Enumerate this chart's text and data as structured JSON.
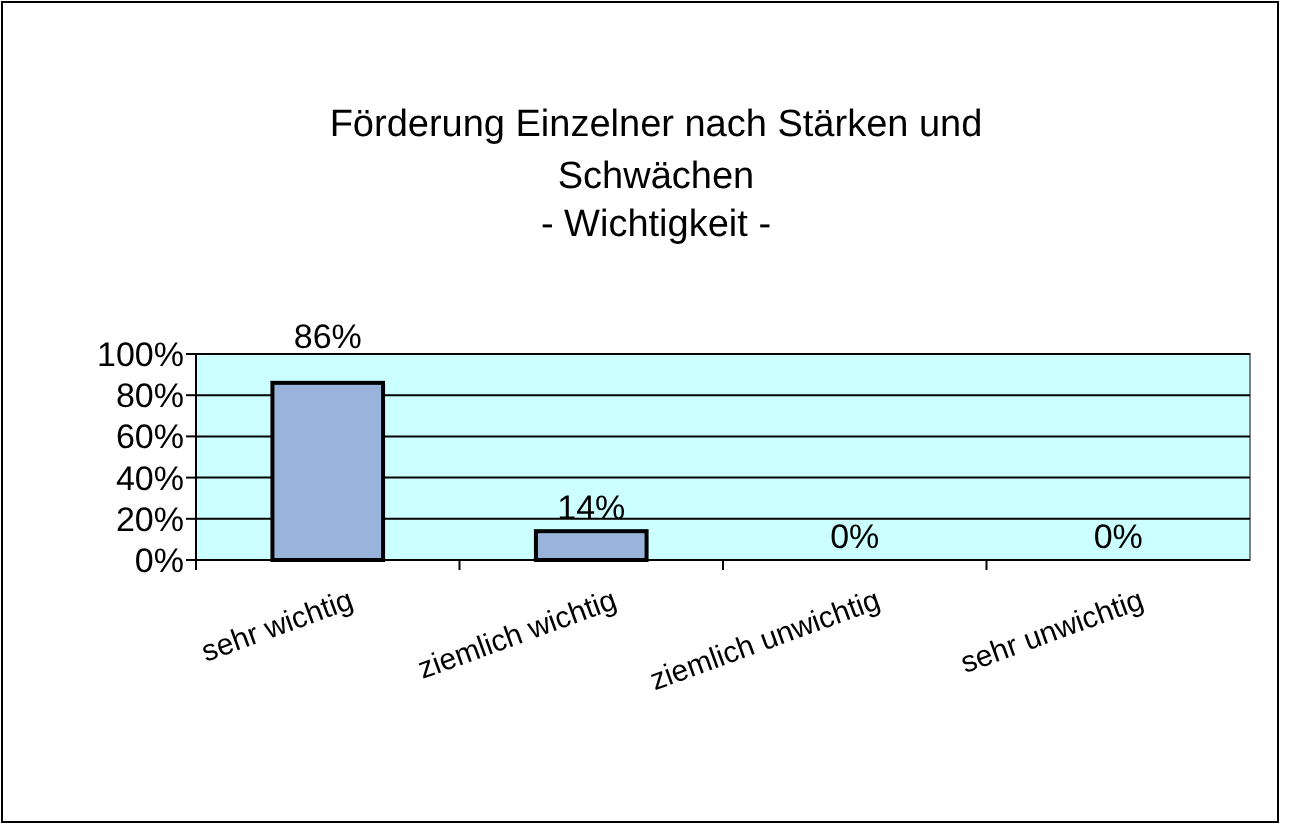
{
  "chart_data": {
    "type": "bar",
    "title": "Förderung Einzelner nach Stärken und Schwächen",
    "subtitle": "- Wichtigkeit -",
    "categories": [
      "sehr wichtig",
      "ziemlich wichtig",
      "ziemlich unwichtig",
      "sehr unwichtig"
    ],
    "values": [
      86,
      14,
      0,
      0
    ],
    "color": "#99b3db",
    "value_labels": [
      "86%",
      "14%",
      "0%",
      "0%"
    ],
    "ylim": [
      0,
      100
    ],
    "yticks": [
      {
        "value": 0,
        "label": "0%"
      },
      {
        "value": 20,
        "label": "20%"
      },
      {
        "value": 40,
        "label": "40%"
      },
      {
        "value": 60,
        "label": "60%"
      },
      {
        "value": 80,
        "label": "80%"
      },
      {
        "value": 100,
        "label": "100%"
      }
    ],
    "grid": "y"
  }
}
